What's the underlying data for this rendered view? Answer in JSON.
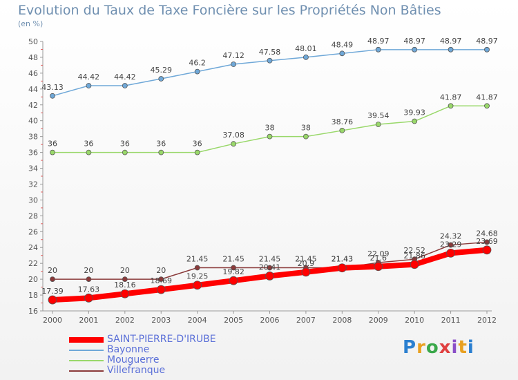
{
  "title": "Evolution du Taux de Taxe Foncière sur les Propriétés Non Bâties",
  "subtitle": "(en %)",
  "logo_text": "Prox iti",
  "chart_data": {
    "type": "line",
    "title": "Evolution du Taux de Taxe Foncière sur les Propriétés Non Bâties",
    "ylabel": "(en %)",
    "xlabel": "",
    "x": [
      "2000",
      "2001",
      "2002",
      "2003",
      "2004",
      "2005",
      "2006",
      "2007",
      "2008",
      "2009",
      "2010",
      "2011",
      "2012"
    ],
    "ylim": [
      16,
      50
    ],
    "yticks": [
      16,
      18,
      20,
      22,
      24,
      26,
      28,
      30,
      32,
      34,
      36,
      38,
      40,
      42,
      44,
      46,
      48,
      50
    ],
    "grid": false,
    "legend_position": "bottom-left",
    "series": [
      {
        "name": "SAINT-PIERRE-D'IRUBE",
        "color": "#ff0000",
        "values": [
          17.39,
          17.63,
          18.16,
          18.69,
          19.25,
          19.82,
          20.41,
          20.9,
          21.43,
          21.6,
          21.86,
          23.29,
          23.69
        ],
        "labels": [
          "17.39",
          "17.63",
          "18.16",
          "18.69",
          "19.25",
          "19.82",
          "20.41",
          "20.9",
          "21.43",
          "21.6",
          "21.86",
          "23.29",
          "23.69"
        ]
      },
      {
        "name": "Bayonne",
        "color": "#6fa8d8",
        "values": [
          43.13,
          44.42,
          44.42,
          45.29,
          46.2,
          47.12,
          47.58,
          48.01,
          48.49,
          48.97,
          48.97,
          48.97,
          48.97
        ],
        "labels": [
          "43.13",
          "44.42",
          "44.42",
          "45.29",
          "46.2",
          "47.12",
          "47.58",
          "48.01",
          "48.49",
          "48.97",
          "48.97",
          "48.97",
          "48.97"
        ]
      },
      {
        "name": "Mouguerre",
        "color": "#99d86a",
        "values": [
          36,
          36,
          36,
          36,
          36,
          37.08,
          38,
          38,
          38.76,
          39.54,
          39.93,
          41.87,
          41.87
        ],
        "labels": [
          "36",
          "36",
          "36",
          "36",
          "36",
          "37.08",
          "38",
          "38",
          "38.76",
          "39.54",
          "39.93",
          "41.87",
          "41.87"
        ]
      },
      {
        "name": "Villefranque",
        "color": "#8a3a3a",
        "values": [
          20,
          20,
          20,
          20,
          21.45,
          21.45,
          21.45,
          21.45,
          21.43,
          22.09,
          22.52,
          24.32,
          24.68
        ],
        "labels": [
          "20",
          "20",
          "20",
          "20",
          "21.45",
          "21.45",
          "21.45",
          "21.45",
          "21.43",
          "22.09",
          "22.52",
          "24.32",
          "24.68"
        ]
      }
    ]
  }
}
